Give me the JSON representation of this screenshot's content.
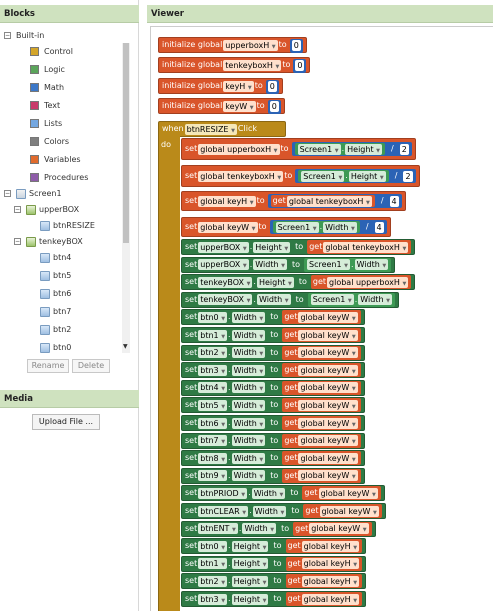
{
  "blocks_panel": {
    "title": "Blocks",
    "tree": [
      {
        "label": "Built-in",
        "toggle": "−"
      },
      {
        "label": "Control",
        "color": "#d4a62a"
      },
      {
        "label": "Logic",
        "color": "#5ba55b"
      },
      {
        "label": "Math",
        "color": "#3c78c8"
      },
      {
        "label": "Text",
        "color": "#c83a6a"
      },
      {
        "label": "Lists",
        "color": "#74a7e0"
      },
      {
        "label": "Colors",
        "color": "#7f7f7f"
      },
      {
        "label": "Variables",
        "color": "#e06b2d"
      },
      {
        "label": "Procedures",
        "color": "#8e5ca8"
      },
      {
        "label": "Screen1",
        "toggle": "−"
      },
      {
        "label": "upperBOX",
        "toggle": "−"
      },
      {
        "label": "btnRESIZE"
      },
      {
        "label": "tenkeyBOX",
        "toggle": "−"
      },
      {
        "label": "btn4"
      },
      {
        "label": "btn5"
      },
      {
        "label": "btn6"
      },
      {
        "label": "btn7"
      },
      {
        "label": "btn2"
      },
      {
        "label": "btn0"
      }
    ],
    "rename_label": "Rename",
    "delete_label": "Delete"
  },
  "media_panel": {
    "title": "Media",
    "upload_label": "Upload File ..."
  },
  "viewer": {
    "title": "Viewer",
    "init_blocks": [
      {
        "prefix": "initialize global",
        "name": "upperboxH",
        "to": "to",
        "value": "0"
      },
      {
        "prefix": "initialize global",
        "name": "tenkeyboxH",
        "to": "to",
        "value": "0"
      },
      {
        "prefix": "initialize global",
        "name": "keyH",
        "to": "to",
        "value": "0"
      },
      {
        "prefix": "initialize global",
        "name": "keyW",
        "to": "to",
        "value": "0"
      }
    ],
    "event": {
      "when": "when",
      "component": "btnRESIZE",
      "event_name": "Click",
      "do": "do"
    },
    "set_globals": [
      {
        "set": "set",
        "target": "global upperboxH",
        "to": "to",
        "comp": "Screen1",
        "prop": "Height",
        "op": "/",
        "num": "2"
      },
      {
        "set": "set",
        "target": "global tenkeyboxH",
        "to": "to",
        "comp": "Screen1",
        "prop": "Height",
        "op": "/",
        "num": "2"
      },
      {
        "set": "set",
        "target": "global keyH",
        "to": "to",
        "get": "get",
        "var": "global tenkeyboxH",
        "op": "/",
        "num": "4"
      },
      {
        "set": "set",
        "target": "global keyW",
        "to": "to",
        "comp": "Screen1",
        "prop": "Width",
        "op": "/",
        "num": "4"
      }
    ],
    "set_props": [
      {
        "set": "set",
        "comp": "upperBOX",
        "prop": "Height",
        "to": "to",
        "kind": "get",
        "get": "get",
        "value": "global tenkeyboxH"
      },
      {
        "set": "set",
        "comp": "upperBOX",
        "prop": "Width",
        "to": "to",
        "kind": "comp",
        "value": "Screen1",
        "prop2": "Width"
      },
      {
        "set": "set",
        "comp": "tenkeyBOX",
        "prop": "Height",
        "to": "to",
        "kind": "get",
        "get": "get",
        "value": "global upperboxH"
      },
      {
        "set": "set",
        "comp": "tenkeyBOX",
        "prop": "Width",
        "to": "to",
        "kind": "comp",
        "value": "Screen1",
        "prop2": "Width"
      },
      {
        "set": "set",
        "comp": "btn0",
        "prop": "Width",
        "to": "to",
        "kind": "get",
        "get": "get",
        "value": "global keyW"
      },
      {
        "set": "set",
        "comp": "btn1",
        "prop": "Width",
        "to": "to",
        "kind": "get",
        "get": "get",
        "value": "global keyW"
      },
      {
        "set": "set",
        "comp": "btn2",
        "prop": "Width",
        "to": "to",
        "kind": "get",
        "get": "get",
        "value": "global keyW"
      },
      {
        "set": "set",
        "comp": "btn3",
        "prop": "Width",
        "to": "to",
        "kind": "get",
        "get": "get",
        "value": "global keyW"
      },
      {
        "set": "set",
        "comp": "btn4",
        "prop": "Width",
        "to": "to",
        "kind": "get",
        "get": "get",
        "value": "global keyW"
      },
      {
        "set": "set",
        "comp": "btn5",
        "prop": "Width",
        "to": "to",
        "kind": "get",
        "get": "get",
        "value": "global keyW"
      },
      {
        "set": "set",
        "comp": "btn6",
        "prop": "Width",
        "to": "to",
        "kind": "get",
        "get": "get",
        "value": "global keyW"
      },
      {
        "set": "set",
        "comp": "btn7",
        "prop": "Width",
        "to": "to",
        "kind": "get",
        "get": "get",
        "value": "global keyW"
      },
      {
        "set": "set",
        "comp": "btn8",
        "prop": "Width",
        "to": "to",
        "kind": "get",
        "get": "get",
        "value": "global keyW"
      },
      {
        "set": "set",
        "comp": "btn9",
        "prop": "Width",
        "to": "to",
        "kind": "get",
        "get": "get",
        "value": "global keyW"
      },
      {
        "set": "set",
        "comp": "btnPRIOD",
        "prop": "Width",
        "to": "to",
        "kind": "get",
        "get": "get",
        "value": "global keyW"
      },
      {
        "set": "set",
        "comp": "btnCLEAR",
        "prop": "Width",
        "to": "to",
        "kind": "get",
        "get": "get",
        "value": "global keyW"
      },
      {
        "set": "set",
        "comp": "btnENT",
        "prop": "Width",
        "to": "to",
        "kind": "get",
        "get": "get",
        "value": "global keyW"
      },
      {
        "set": "set",
        "comp": "btn0",
        "prop": "Height",
        "to": "to",
        "kind": "get",
        "get": "get",
        "value": "global keyH"
      },
      {
        "set": "set",
        "comp": "btn1",
        "prop": "Height",
        "to": "to",
        "kind": "get",
        "get": "get",
        "value": "global keyH"
      },
      {
        "set": "set",
        "comp": "btn2",
        "prop": "Height",
        "to": "to",
        "kind": "get",
        "get": "get",
        "value": "global keyH"
      },
      {
        "set": "set",
        "comp": "btn3",
        "prop": "Height",
        "to": "to",
        "kind": "get",
        "get": "get",
        "value": "global keyH"
      }
    ]
  }
}
